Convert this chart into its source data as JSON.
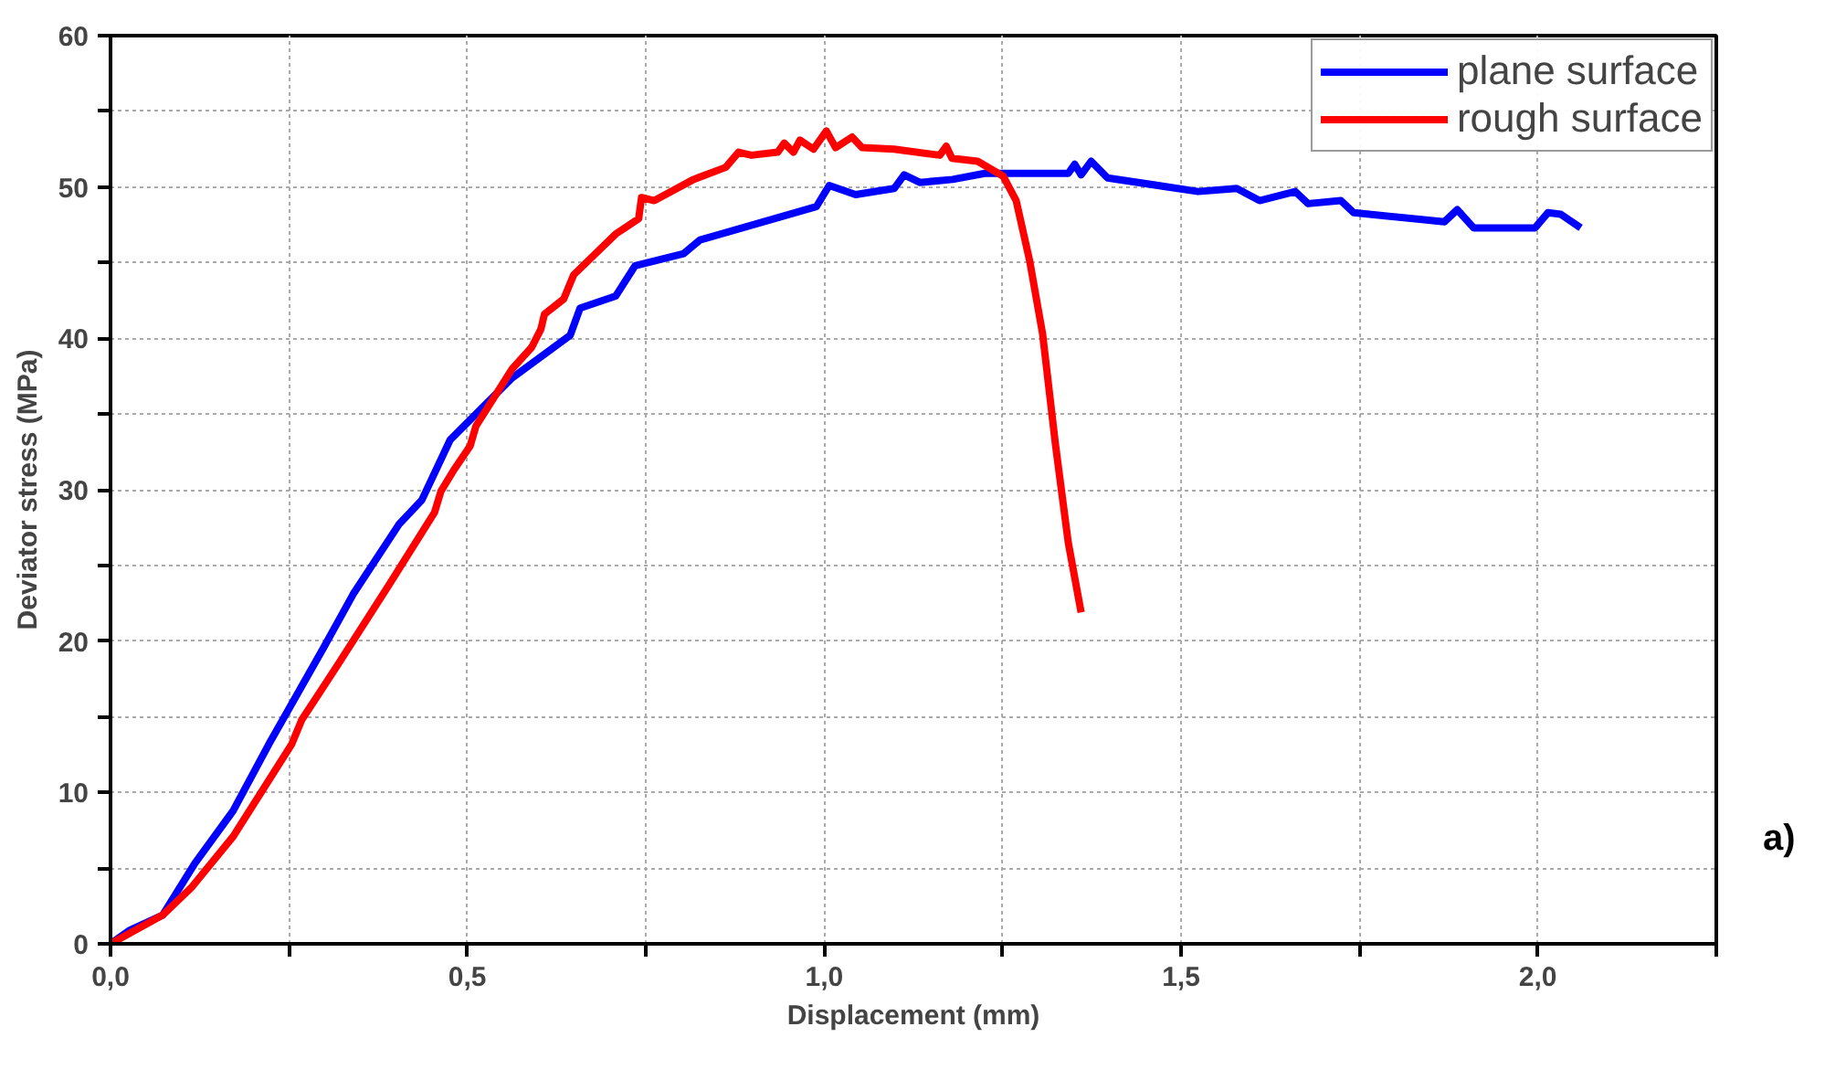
{
  "chart_data": {
    "type": "line",
    "xlabel": "Displacement (mm)",
    "ylabel": "Deviator stress (MPa)",
    "annotations": [
      "a)"
    ],
    "xlim": [
      0,
      2.25
    ],
    "ylim": [
      0,
      60
    ],
    "xticks": [
      {
        "value": 0,
        "label": "0,0"
      },
      {
        "value": 0.25,
        "label": null
      },
      {
        "value": 0.5,
        "label": "0,5"
      },
      {
        "value": 0.75,
        "label": null
      },
      {
        "value": 1.0,
        "label": "1,0"
      },
      {
        "value": 1.25,
        "label": null
      },
      {
        "value": 1.5,
        "label": "1,5"
      },
      {
        "value": 1.75,
        "label": null
      },
      {
        "value": 2.0,
        "label": "2,0"
      },
      {
        "value": 2.25,
        "label": null
      }
    ],
    "yticks": [
      0,
      {
        "value": 5,
        "label": null
      },
      10,
      {
        "value": 15,
        "label": null
      },
      20,
      {
        "value": 25,
        "label": null
      },
      30,
      {
        "value": 35,
        "label": null
      },
      40,
      {
        "value": 45,
        "label": null
      },
      50,
      {
        "value": 55,
        "label": null
      },
      60
    ],
    "grid": true,
    "legend": "top right",
    "marker": "none",
    "line_style": "solid",
    "series": [
      {
        "name": "plane surface",
        "color": "#0000ff",
        "x": [
          0,
          0.027,
          0.073,
          0.118,
          0.172,
          0.222,
          0.299,
          0.34,
          0.404,
          0.436,
          0.476,
          0.563,
          0.644,
          0.658,
          0.708,
          0.735,
          0.803,
          0.826,
          0.989,
          1.007,
          1.044,
          1.098,
          1.112,
          1.134,
          1.18,
          1.225,
          1.342,
          1.351,
          1.36,
          1.374,
          1.397,
          1.524,
          1.578,
          1.61,
          1.66,
          1.678,
          1.724,
          1.742,
          1.869,
          1.887,
          1.91,
          1.996,
          2.014,
          2.032,
          2.06
        ],
        "values": [
          0,
          0.9,
          1.9,
          5.3,
          8.8,
          13.2,
          19.6,
          23.1,
          27.7,
          29.3,
          33.3,
          37.4,
          40.2,
          42.0,
          42.8,
          44.8,
          45.6,
          46.5,
          48.7,
          50.1,
          49.5,
          49.9,
          50.8,
          50.3,
          50.5,
          50.9,
          50.9,
          51.5,
          50.8,
          51.7,
          50.6,
          49.7,
          49.9,
          49.1,
          49.7,
          48.9,
          49.1,
          48.3,
          47.7,
          48.5,
          47.3,
          47.3,
          48.3,
          48.2,
          47.3
        ]
      },
      {
        "name": "rough surface",
        "color": "#ff0000",
        "x": [
          0,
          0.073,
          0.113,
          0.172,
          0.254,
          0.268,
          0.318,
          0.39,
          0.454,
          0.463,
          0.481,
          0.504,
          0.512,
          0.563,
          0.59,
          0.603,
          0.608,
          0.635,
          0.649,
          0.708,
          0.74,
          0.744,
          0.762,
          0.817,
          0.862,
          0.88,
          0.898,
          0.935,
          0.944,
          0.957,
          0.966,
          0.985,
          1.003,
          1.016,
          1.039,
          1.053,
          1.098,
          1.162,
          1.171,
          1.179,
          1.215,
          1.251,
          1.269,
          1.288,
          1.306,
          1.324,
          1.342,
          1.36
        ],
        "values": [
          0,
          1.9,
          3.7,
          7.1,
          13.2,
          14.8,
          18.4,
          23.7,
          28.5,
          29.9,
          31.3,
          32.9,
          34.2,
          38.0,
          39.4,
          40.6,
          41.6,
          42.6,
          44.2,
          46.9,
          47.9,
          49.3,
          49.1,
          50.5,
          51.3,
          52.3,
          52.1,
          52.3,
          52.9,
          52.3,
          53.1,
          52.5,
          53.7,
          52.6,
          53.3,
          52.6,
          52.5,
          52.1,
          52.7,
          51.9,
          51.7,
          50.7,
          49.1,
          45.1,
          40.3,
          33.0,
          26.5,
          21.9
        ]
      }
    ]
  }
}
